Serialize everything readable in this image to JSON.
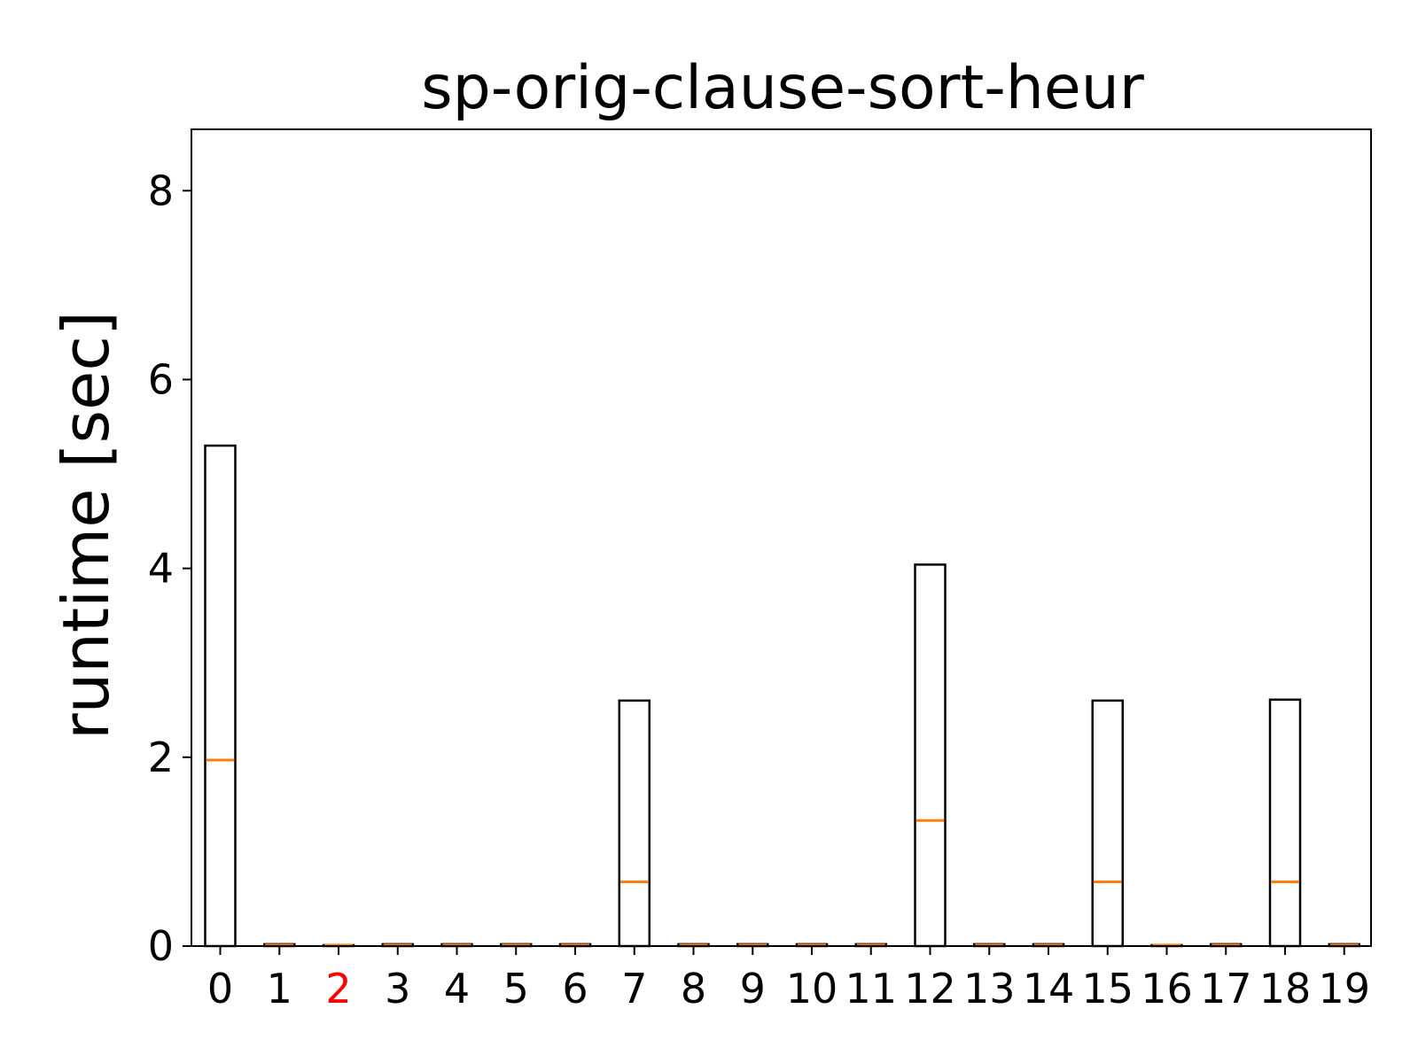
{
  "chart_data": {
    "type": "box",
    "title": "sp-orig-clause-sort-heur",
    "xlabel": "",
    "ylabel": "runtime [sec]",
    "ylim": [
      0,
      8.65
    ],
    "yticks": [
      0,
      2,
      4,
      6,
      8
    ],
    "categories": [
      "0",
      "1",
      "2",
      "3",
      "4",
      "5",
      "6",
      "7",
      "8",
      "9",
      "10",
      "11",
      "12",
      "13",
      "14",
      "15",
      "16",
      "17",
      "18",
      "19"
    ],
    "highlighted_categories": [
      "2"
    ],
    "highlight_color": "#ff0000",
    "box_top": [
      5.3,
      0.02,
      0.01,
      0.02,
      0.02,
      0.02,
      0.02,
      2.6,
      0.02,
      0.02,
      0.02,
      0.02,
      4.04,
      0.02,
      0.02,
      2.6,
      0.01,
      0.02,
      2.61,
      0.02
    ],
    "medians": [
      1.97,
      0.01,
      0.01,
      0.01,
      0.01,
      0.01,
      0.01,
      0.68,
      0.01,
      0.01,
      0.01,
      0.01,
      1.33,
      0.01,
      0.01,
      0.68,
      0.01,
      0.01,
      0.68,
      0.01
    ],
    "box_color": "#000000",
    "median_color": "#ff7f0e",
    "grid": false,
    "legend": "none"
  }
}
